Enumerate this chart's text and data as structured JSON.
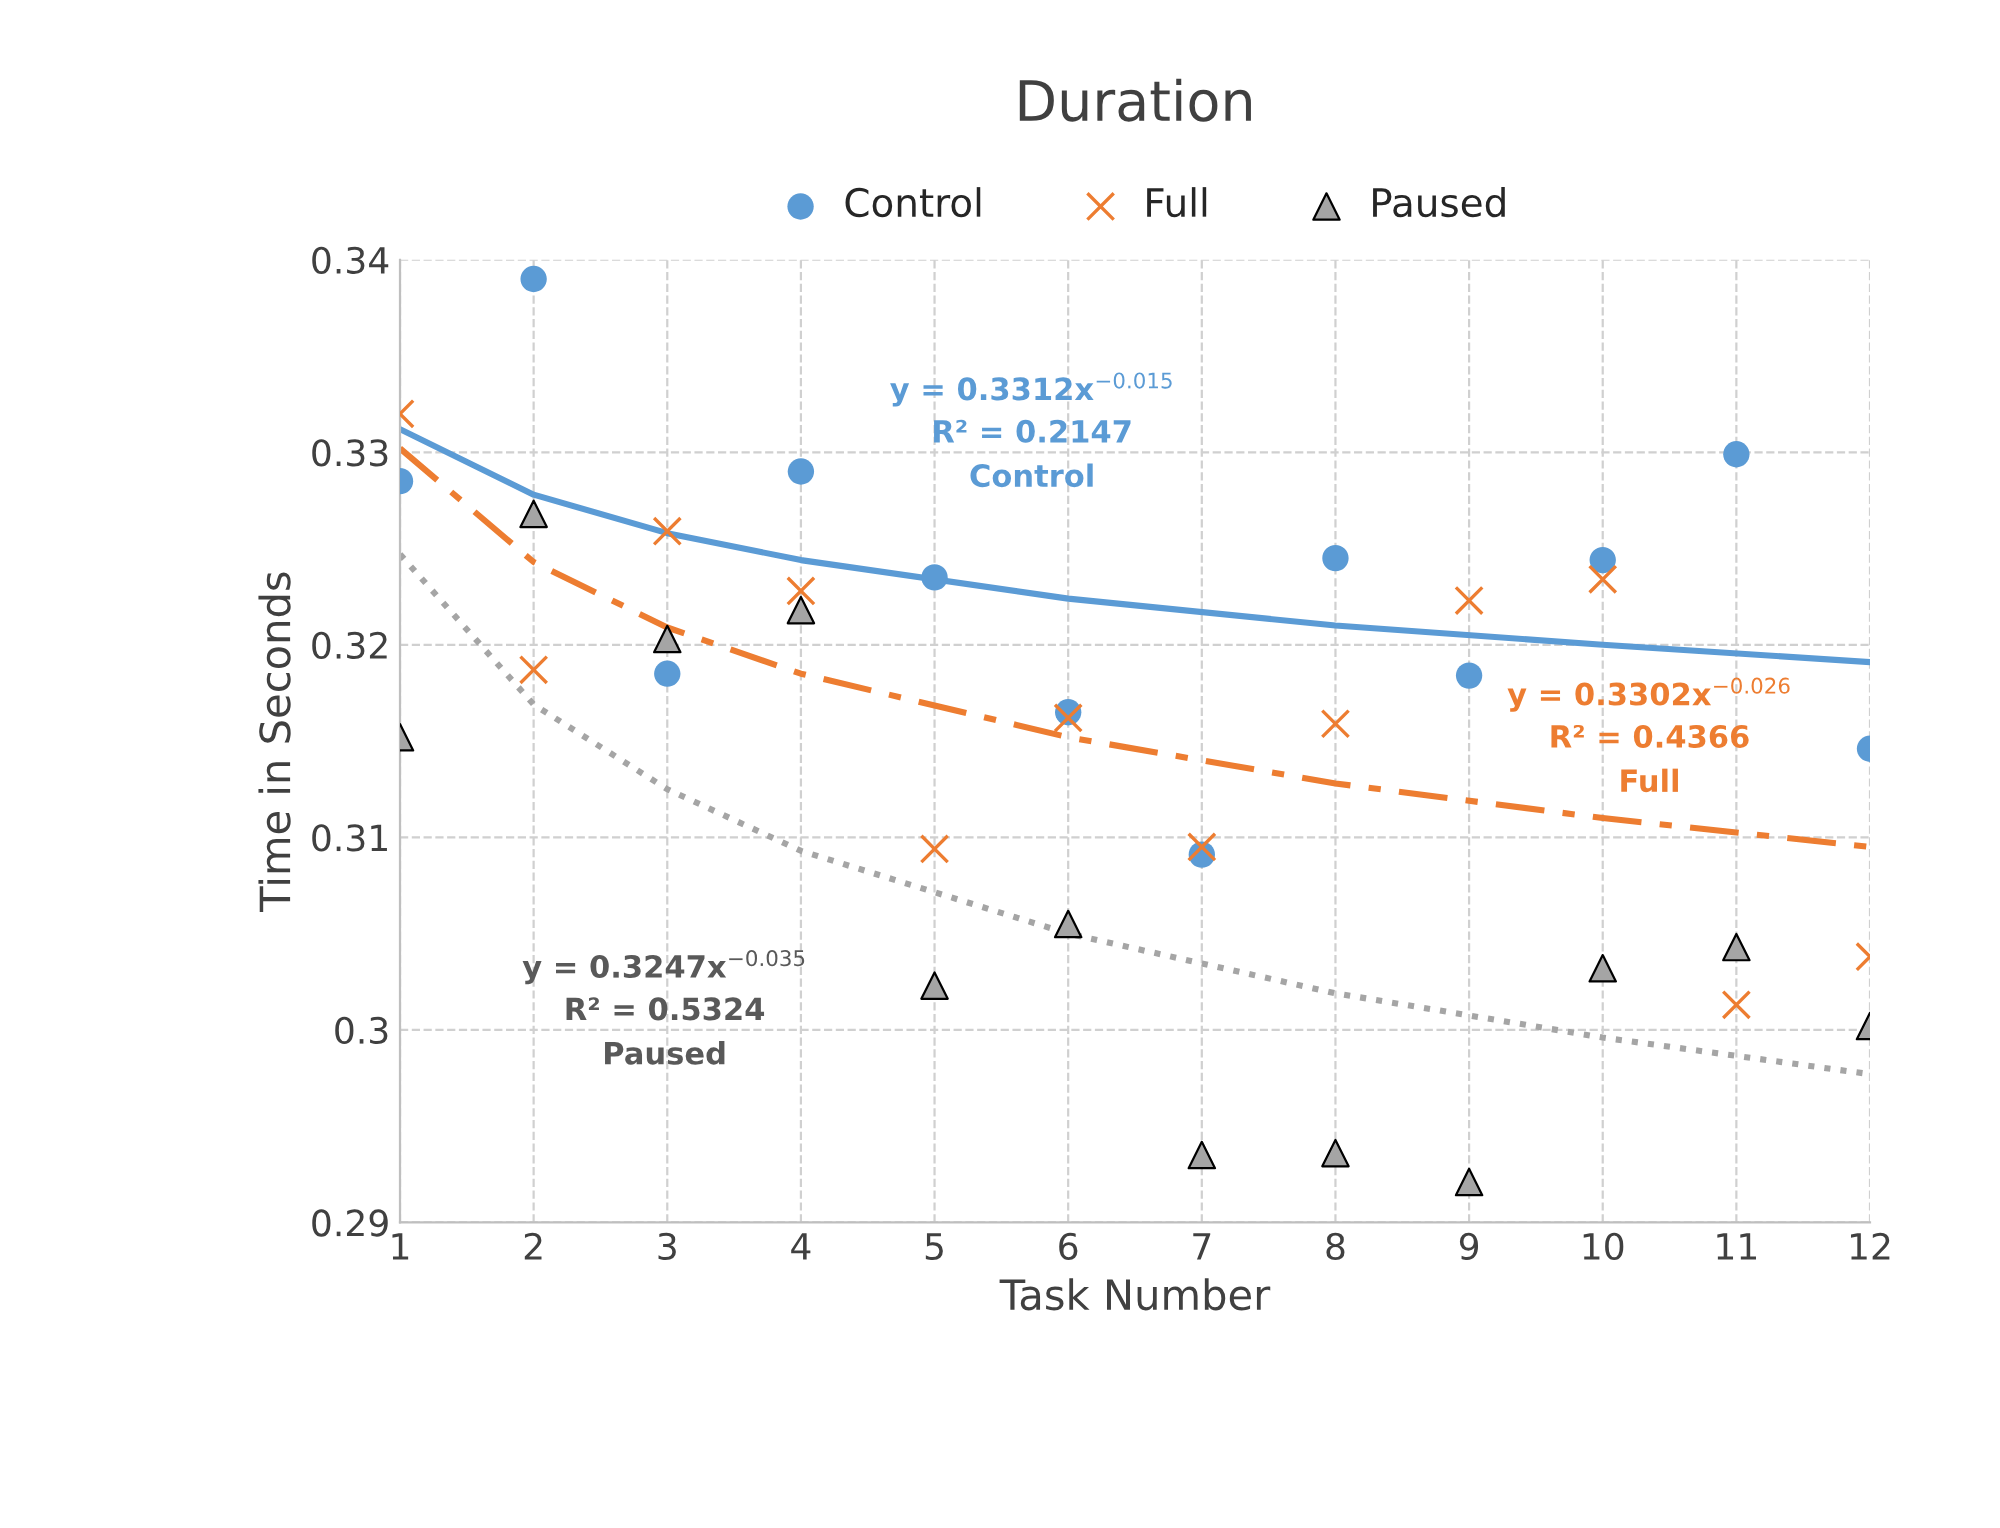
{
  "chart_data": {
    "type": "scatter",
    "title": "Duration",
    "xlabel": "Task Number",
    "ylabel": "Time in Seconds",
    "x": [
      1,
      2,
      3,
      4,
      5,
      6,
      7,
      8,
      9,
      10,
      11,
      12
    ],
    "series": [
      {
        "name": "Control",
        "color": "#5b9bd5",
        "marker": "circle",
        "values": [
          0.3285,
          0.339,
          0.3185,
          0.329,
          0.3235,
          0.3165,
          0.3091,
          0.3245,
          0.3184,
          0.3244,
          0.3299,
          0.3146
        ]
      },
      {
        "name": "Full",
        "color": "#ed7d31",
        "marker": "cross",
        "values": [
          0.332,
          0.3187,
          0.3259,
          0.3228,
          0.3094,
          0.3162,
          0.3095,
          0.3159,
          0.3223,
          0.3234,
          0.3013,
          0.3038
        ]
      },
      {
        "name": "Paused",
        "color": "#a5a5a5",
        "marker": "triangle",
        "values": [
          0.3152,
          0.3268,
          0.3203,
          0.3218,
          0.3023,
          0.3055,
          0.2935,
          0.2936,
          0.2921,
          0.3032,
          0.3043,
          0.3002
        ]
      },
      {
        "type": "line",
        "color": "#5b9bd5",
        "line_style": "solid",
        "x": [
          1,
          2,
          3,
          4,
          6,
          8,
          10,
          12
        ],
        "values": [
          0.3312,
          0.3278,
          0.3258,
          0.3244,
          0.3224,
          0.321,
          0.32,
          0.3191
        ]
      },
      {
        "type": "line",
        "color": "#ed7d31",
        "line_style": "dashed",
        "x": [
          1,
          2,
          3,
          4,
          6,
          8,
          10,
          12
        ],
        "values": [
          0.3302,
          0.3243,
          0.3209,
          0.3185,
          0.3152,
          0.3128,
          0.311,
          0.3095
        ]
      },
      {
        "type": "line",
        "color": "#a5a5a5",
        "line_style": "dotted",
        "x": [
          1,
          2,
          3,
          4,
          6,
          8,
          10,
          12
        ],
        "values": [
          0.3247,
          0.3169,
          0.3125,
          0.3093,
          0.305,
          0.3019,
          0.2996,
          0.2977
        ]
      }
    ],
    "annotations": [
      "y = 0.3312x$^{−0.015}$",
      "R² = 0.2147",
      "Control",
      "y = 0.3302x$^{−0.026}$",
      "R² = 0.4366",
      "Full",
      "y = 0.3247x$^{−0.035}$",
      "R² = 0.5324",
      "Paused"
    ],
    "xlim": [
      1,
      12
    ],
    "xticks": [
      1,
      2,
      3,
      4,
      5,
      6,
      7,
      8,
      9,
      10,
      11,
      12
    ],
    "ylim": [
      0.29,
      0.34
    ],
    "yticks": [
      0.29,
      0.3,
      0.31,
      0.32,
      0.33,
      0.34
    ],
    "grid": true,
    "legend": "top"
  }
}
